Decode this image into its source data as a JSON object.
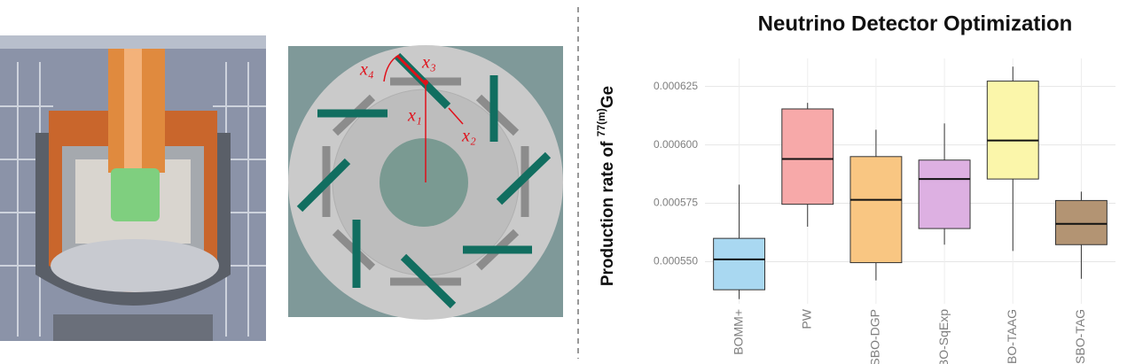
{
  "schematic_labels": [
    "x₁",
    "x₂",
    "x₃",
    "x₄"
  ],
  "chart_data": {
    "type": "box",
    "title": "Neutrino Detector Optimization",
    "y_label": {
      "text": "Production rate of ",
      "superscript": "77(m)",
      "suffix": "Ge"
    },
    "categories": [
      "BOMM+",
      "PW",
      "SBO-DGP",
      "SBO-SqExp",
      "SBO-TAAG",
      "SBO-TAG"
    ],
    "boxes": [
      {
        "color": "#a9d8f1",
        "min": 0.000534,
        "q1": 0.000538,
        "median": 0.000551,
        "q3": 0.00056,
        "max": 0.000583
      },
      {
        "color": "#f7a9a9",
        "min": 0.000565,
        "q1": 0.0005746,
        "median": 0.000594,
        "q3": 0.0006154,
        "max": 0.000618
      },
      {
        "color": "#f9c682",
        "min": 0.000542,
        "q1": 0.0005496,
        "median": 0.0005765,
        "q3": 0.000595,
        "max": 0.0006065
      },
      {
        "color": "#ddb0e2",
        "min": 0.0005573,
        "q1": 0.0005642,
        "median": 0.0005854,
        "q3": 0.0005935,
        "max": 0.0006092
      },
      {
        "color": "#fbf6aa",
        "min": 0.0005546,
        "q1": 0.0005854,
        "median": 0.0006019,
        "q3": 0.0006273,
        "max": 0.0006335
      },
      {
        "color": "#b39473",
        "min": 0.0005427,
        "q1": 0.0005573,
        "median": 0.0005662,
        "q3": 0.0005762,
        "max": 0.00058
      }
    ],
    "ylim": [
      0.000532,
      0.000637
    ],
    "yticks": [
      {
        "value": 0.00055,
        "label": "0.000550"
      },
      0.000575,
      {
        "value": 0.0006,
        "label": "0.000600"
      },
      0.000625
    ],
    "grid": true
  }
}
